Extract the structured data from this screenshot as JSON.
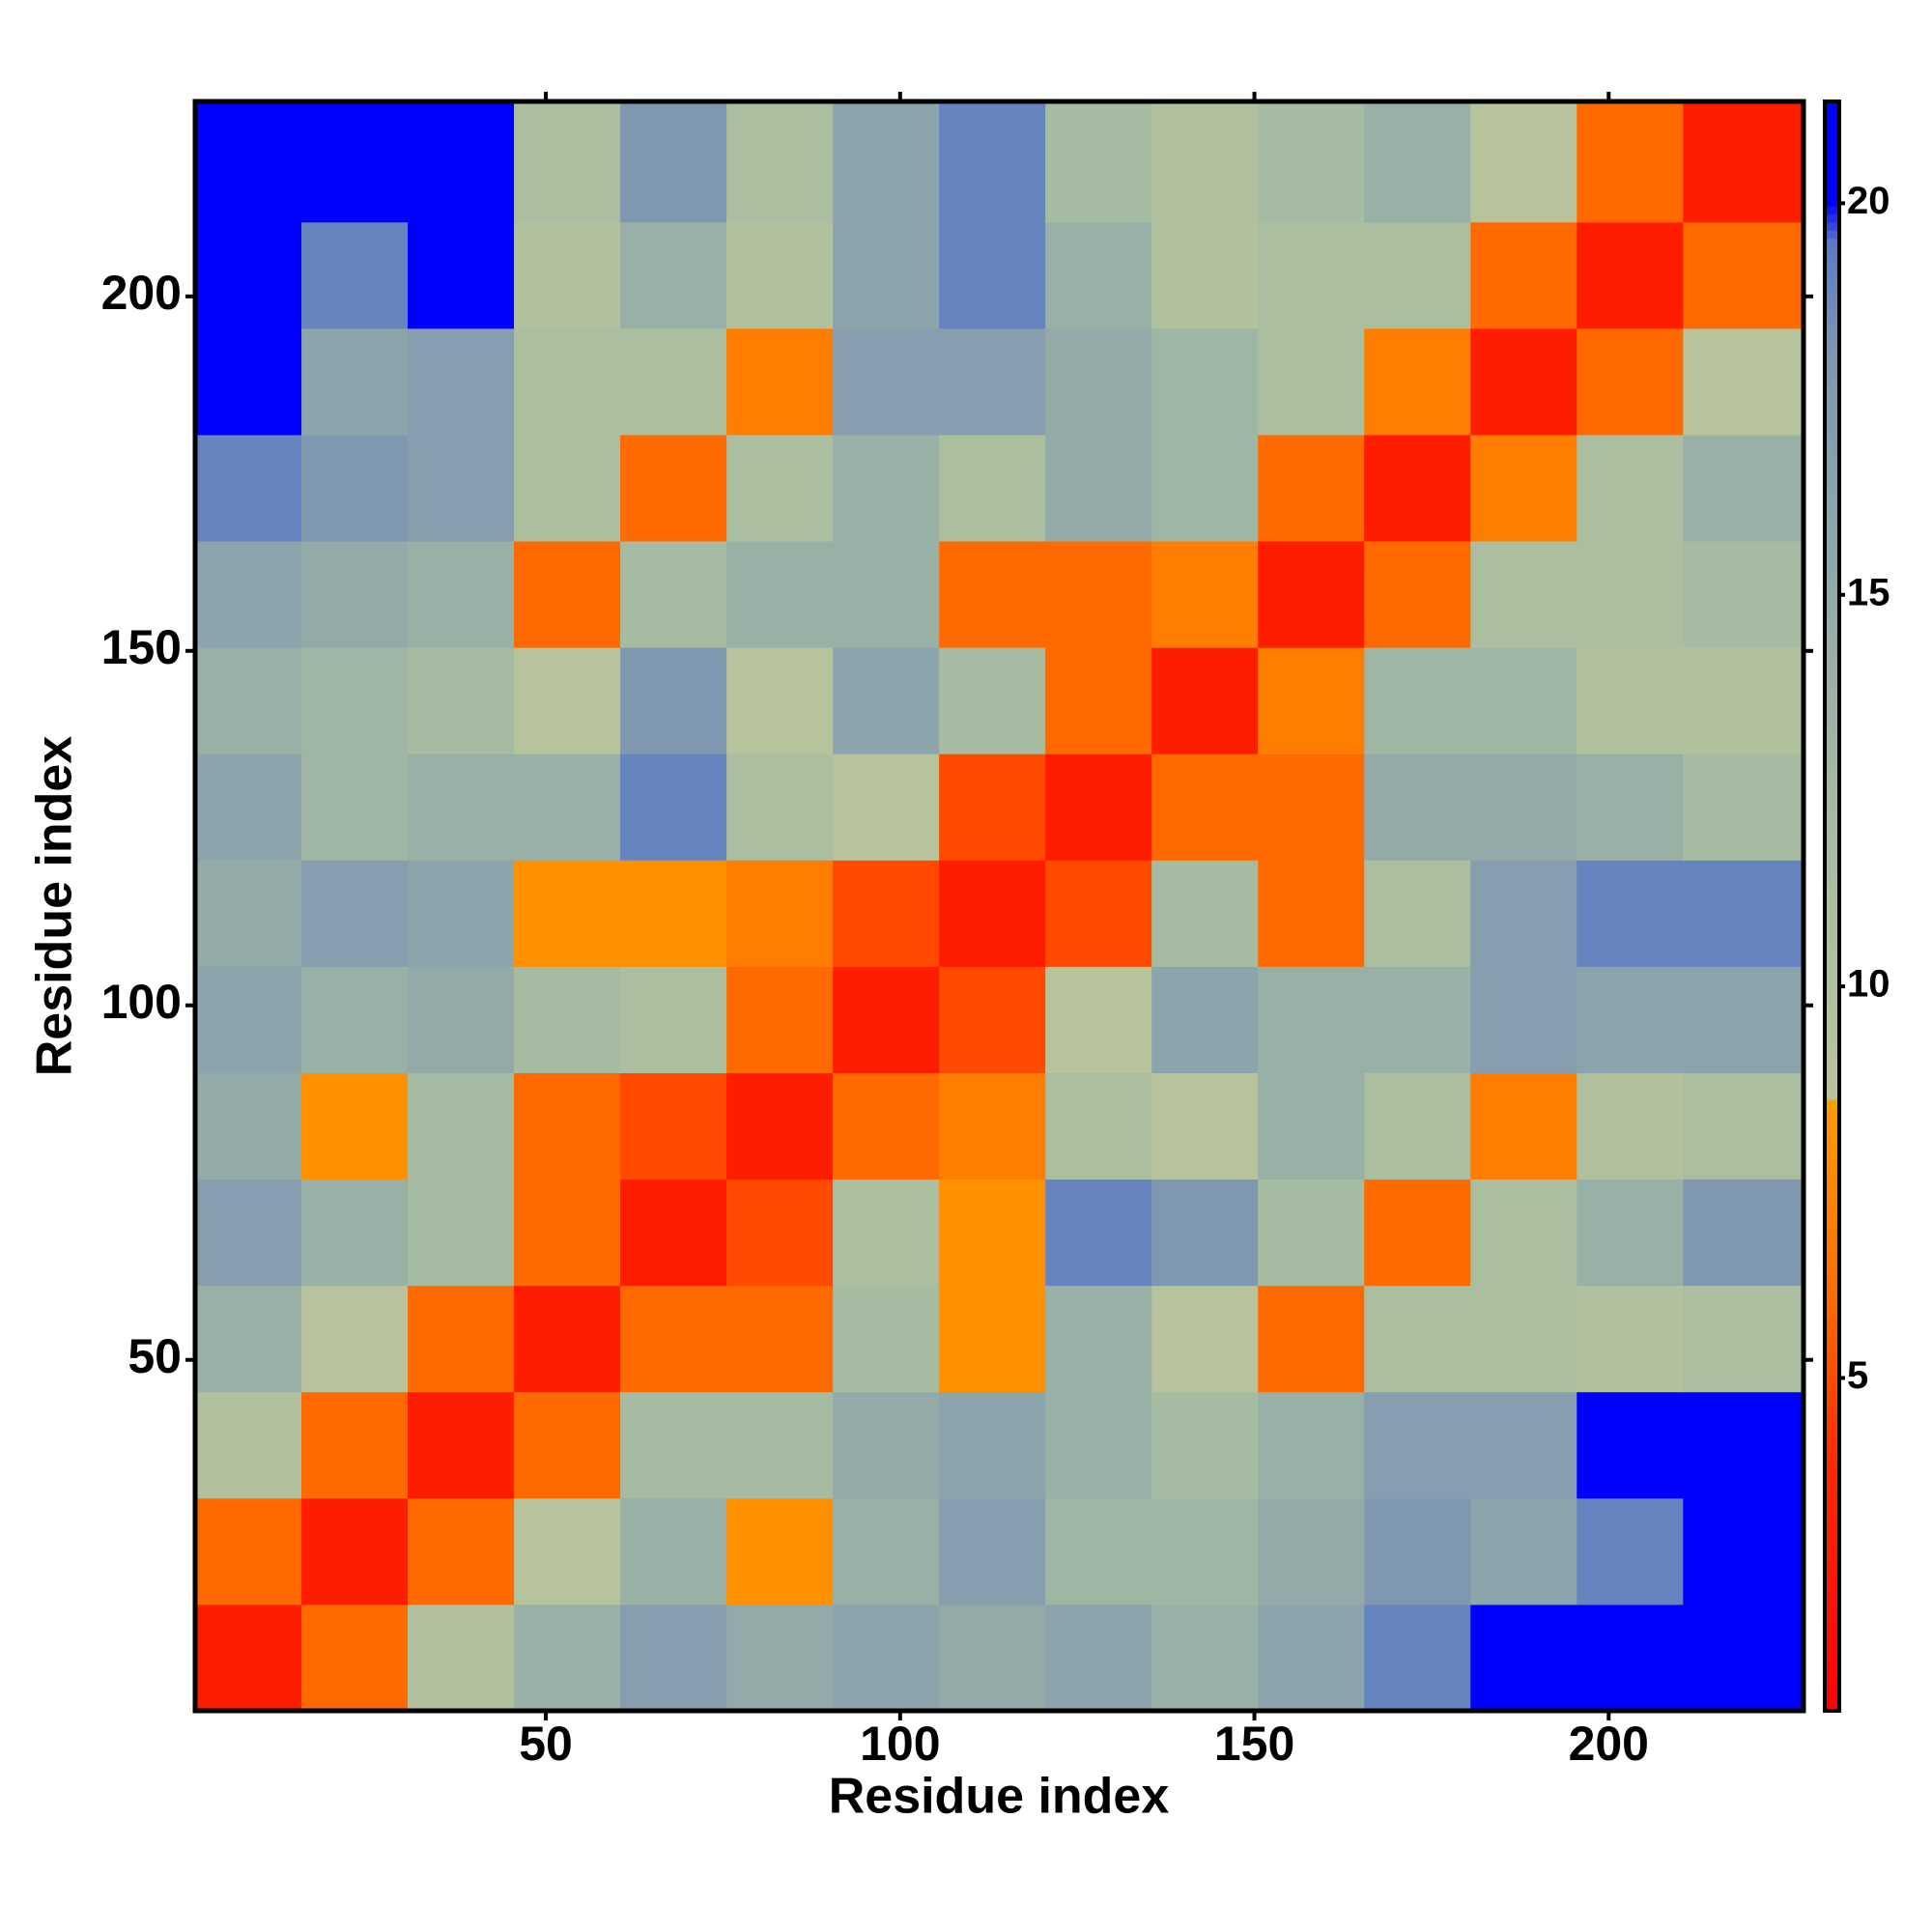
{
  "chart_data": {
    "type": "heatmap",
    "xlabel": "Residue index",
    "ylabel": "Residue index",
    "xlim": [
      0.5,
      227.5
    ],
    "ylim": [
      0.5,
      227.5
    ],
    "xticks": [
      50,
      100,
      150,
      200
    ],
    "yticks": [
      50,
      100,
      150,
      200
    ],
    "xbins": [
      0.5,
      15.5,
      30.5,
      45.5,
      60.5,
      75.5,
      90.5,
      105.5,
      120.5,
      135.5,
      150.5,
      165.5,
      180.5,
      195.5,
      210.5,
      227.5
    ],
    "ybins": [
      0.5,
      15.5,
      30.5,
      45.5,
      60.5,
      75.5,
      90.5,
      105.5,
      120.5,
      135.5,
      150.5,
      165.5,
      180.5,
      195.5,
      210.5,
      227.5
    ],
    "z": [
      [
        3,
        6,
        10,
        14,
        17,
        15,
        16,
        15,
        16,
        14,
        16,
        19,
        21,
        21,
        21
      ],
      [
        6,
        3,
        6,
        9,
        14,
        8,
        14,
        17,
        13,
        13,
        15,
        18,
        16,
        19,
        21
      ],
      [
        10,
        6,
        3,
        6,
        12,
        12,
        15,
        16,
        14,
        12,
        14,
        17,
        17,
        21,
        21
      ],
      [
        14,
        9,
        6,
        3,
        6,
        6,
        12,
        8,
        14,
        9,
        6,
        11,
        11,
        10,
        11
      ],
      [
        17,
        14,
        12,
        6,
        3,
        5,
        11,
        8,
        19,
        18,
        12,
        6,
        11,
        14,
        18
      ],
      [
        15,
        8,
        12,
        6,
        5,
        3,
        6,
        7,
        11,
        9,
        14,
        11,
        7,
        10,
        11
      ],
      [
        16,
        14,
        15,
        12,
        11,
        6,
        3,
        5,
        9,
        16,
        14,
        14,
        17,
        16,
        16
      ],
      [
        15,
        17,
        16,
        8,
        8,
        7,
        5,
        3,
        5,
        12,
        6,
        11,
        17,
        19,
        19
      ],
      [
        16,
        13,
        14,
        14,
        19,
        11,
        9,
        5,
        3,
        6,
        6,
        15,
        15,
        14,
        12
      ],
      [
        14,
        13,
        12,
        9,
        18,
        9,
        16,
        12,
        6,
        3,
        7,
        13,
        13,
        10,
        10
      ],
      [
        16,
        15,
        14,
        6,
        12,
        14,
        14,
        6,
        6,
        7,
        3,
        6,
        11,
        11,
        12
      ],
      [
        19,
        18,
        17,
        11,
        6,
        11,
        14,
        11,
        15,
        13,
        6,
        3,
        7,
        11,
        14
      ],
      [
        21,
        16,
        17,
        11,
        11,
        7,
        17,
        17,
        15,
        13,
        11,
        7,
        3,
        6,
        9
      ],
      [
        21,
        19,
        21,
        10,
        14,
        10,
        16,
        19,
        14,
        10,
        11,
        11,
        6,
        3,
        6
      ],
      [
        21,
        21,
        21,
        11,
        18,
        11,
        16,
        19,
        12,
        10,
        12,
        14,
        9,
        6,
        3
      ]
    ],
    "zlim": [
      0.75,
      21.3
    ],
    "zticks": [
      5,
      10,
      15,
      20
    ],
    "colorscale": [
      [
        0.75,
        "#ff0000"
      ],
      [
        4,
        "#ff2a00"
      ],
      [
        6,
        "#ff6a00"
      ],
      [
        8.5,
        "#ff9a00"
      ],
      [
        8.6,
        "#b8c49a"
      ],
      [
        12,
        "#a6bca2"
      ],
      [
        18,
        "#7f98b0"
      ],
      [
        19.5,
        "#5a7ac8"
      ],
      [
        20,
        "#0000ff"
      ],
      [
        21.3,
        "#0000ff"
      ]
    ]
  }
}
